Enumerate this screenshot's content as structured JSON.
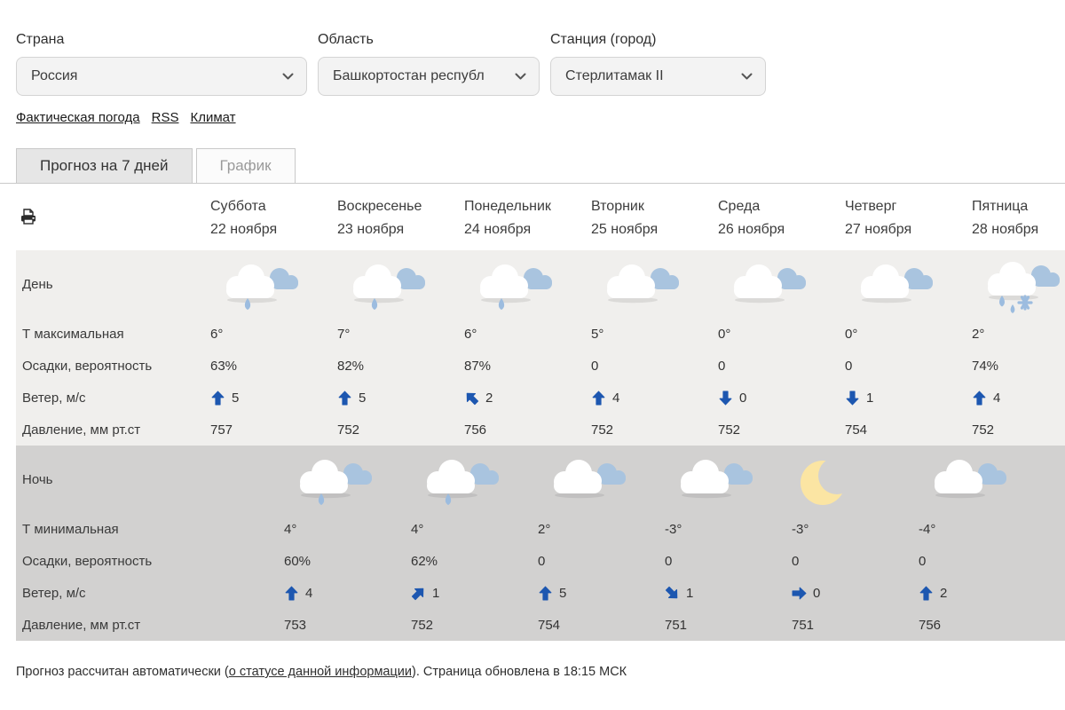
{
  "filters": {
    "country": {
      "label": "Страна",
      "value": "Россия"
    },
    "region": {
      "label": "Область",
      "value": "Башкортостан республ"
    },
    "station": {
      "label": "Станция (город)",
      "value": "Стерлитамак II"
    }
  },
  "links": [
    "Фактическая погода",
    "RSS",
    "Климат"
  ],
  "tabs": [
    {
      "label": "Прогноз на 7 дней",
      "active": true
    },
    {
      "label": "График",
      "active": false
    }
  ],
  "table": {
    "columns": [
      {
        "day": "Суббота",
        "date": "22 ноября"
      },
      {
        "day": "Воскресенье",
        "date": "23 ноября"
      },
      {
        "day": "Понедельник",
        "date": "24 ноября"
      },
      {
        "day": "Вторник",
        "date": "25 ноября"
      },
      {
        "day": "Среда",
        "date": "26 ноября"
      },
      {
        "day": "Четверг",
        "date": "27 ноября"
      },
      {
        "day": "Пятница",
        "date": "28 ноября"
      }
    ],
    "day": {
      "label": "День",
      "icons": [
        "cloud-rain-icon",
        "cloud-rain-icon",
        "cloud-rain-icon",
        "cloud-icon",
        "cloud-icon",
        "cloud-icon",
        "cloud-rain-snow-icon"
      ],
      "rows": [
        {
          "label": "Т максимальная",
          "type": "text",
          "values": [
            "6°",
            "7°",
            "6°",
            "5°",
            "0°",
            "0°",
            "2°"
          ]
        },
        {
          "label": "Осадки, вероятность",
          "type": "text",
          "values": [
            "63%",
            "82%",
            "87%",
            "0",
            "0",
            "0",
            "74%"
          ]
        },
        {
          "label": "Ветер, м/с",
          "type": "wind",
          "values": [
            {
              "dir": "up",
              "speed": "5"
            },
            {
              "dir": "up",
              "speed": "5"
            },
            {
              "dir": "up-left",
              "speed": "2"
            },
            {
              "dir": "up",
              "speed": "4"
            },
            {
              "dir": "down",
              "speed": "0"
            },
            {
              "dir": "down",
              "speed": "1"
            },
            {
              "dir": "up",
              "speed": "4"
            }
          ]
        },
        {
          "label": "Давление, мм рт.ст",
          "type": "text",
          "values": [
            "757",
            "752",
            "756",
            "752",
            "752",
            "754",
            "752"
          ]
        }
      ]
    },
    "night": {
      "label": "Ночь",
      "icons": [
        "cloud-rain-icon",
        "cloud-rain-icon",
        "cloud-icon",
        "cloud-icon",
        "moon-icon",
        "cloud-icon"
      ],
      "rows": [
        {
          "label": "Т минимальная",
          "type": "text",
          "values": [
            "4°",
            "4°",
            "2°",
            "-3°",
            "-3°",
            "-4°"
          ]
        },
        {
          "label": "Осадки, вероятность",
          "type": "text",
          "values": [
            "60%",
            "62%",
            "0",
            "0",
            "0",
            "0"
          ]
        },
        {
          "label": "Ветер, м/с",
          "type": "wind",
          "values": [
            {
              "dir": "up",
              "speed": "4"
            },
            {
              "dir": "up-right",
              "speed": "1"
            },
            {
              "dir": "up",
              "speed": "5"
            },
            {
              "dir": "down-right",
              "speed": "1"
            },
            {
              "dir": "right",
              "speed": "0"
            },
            {
              "dir": "up",
              "speed": "2"
            }
          ]
        },
        {
          "label": "Давление, мм рт.ст",
          "type": "text",
          "values": [
            "753",
            "752",
            "754",
            "751",
            "751",
            "756"
          ]
        }
      ]
    }
  },
  "footer": {
    "prefix": "Прогноз рассчитан автоматически (",
    "link": "о статусе данной информации",
    "suffix": "). Страница обновлена в 18:15 МСК"
  },
  "colors": {
    "accent_blue": "#1d57b0",
    "day_bg": "#f0efed",
    "night_bg": "#d2d1d0",
    "cloud_back": "#a9c4df",
    "drop": "#9cbcdf",
    "moon": "#fbe5a3"
  }
}
